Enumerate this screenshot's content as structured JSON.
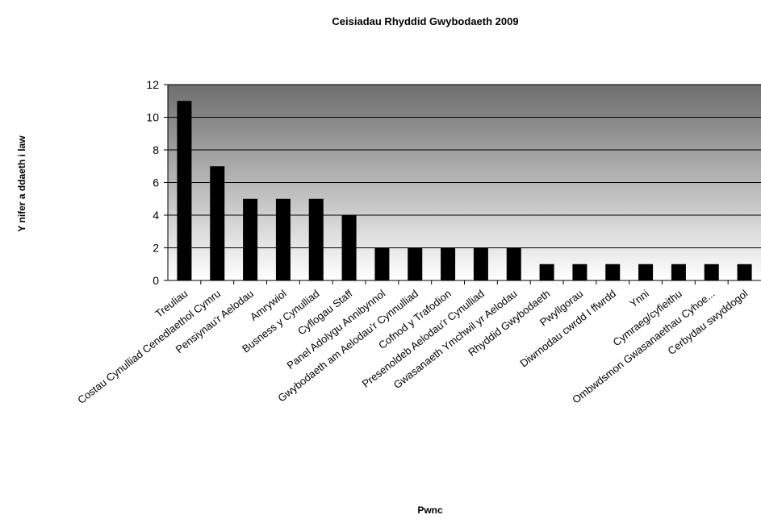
{
  "chart_data": {
    "type": "bar",
    "title": "Ceisiadau Rhyddid Gwybodaeth 2009",
    "xlabel": "Pwnc",
    "ylabel": "Y nifer a ddaeth i law",
    "ylim": [
      0,
      12
    ],
    "yticks": [
      0,
      2,
      4,
      6,
      8,
      10,
      12
    ],
    "grid": true,
    "legend": "none",
    "categories": [
      "Treuliau",
      "Costau Cynulliad Cenedlaethol Cymru",
      "Pensiynau'r Aelodau",
      "Amrywiol",
      "Busness y Cynulliad",
      "Cyflogau Staff",
      "Panel Adolygu Annibynnol",
      "Gwybodaeth am Aelodau'r Cynnulliad",
      "Cofnod y Trafodion",
      "Presenoldeb Aelodau'r Cynulliad",
      "Gwasanaeth Ymchwil yr Aelodau",
      "Rhyddid Gwybodaeth",
      "Pwyllgorau",
      "Diwrnodau cwrdd I ffwrdd",
      "Ynni",
      "Cymraeg/cyfieithu",
      "Ombwdsmon Gwasanaethau Cyhoe...",
      "Cerbydau swyddogol"
    ],
    "values": [
      11,
      7,
      5,
      5,
      5,
      4,
      2,
      2,
      2,
      2,
      2,
      1,
      1,
      1,
      1,
      1,
      1,
      1
    ],
    "colors": {
      "bar": "#000000",
      "plot_bg_top": "#6e6e6e",
      "plot_bg_bottom": "#ffffff",
      "gridline": "#000000"
    }
  }
}
